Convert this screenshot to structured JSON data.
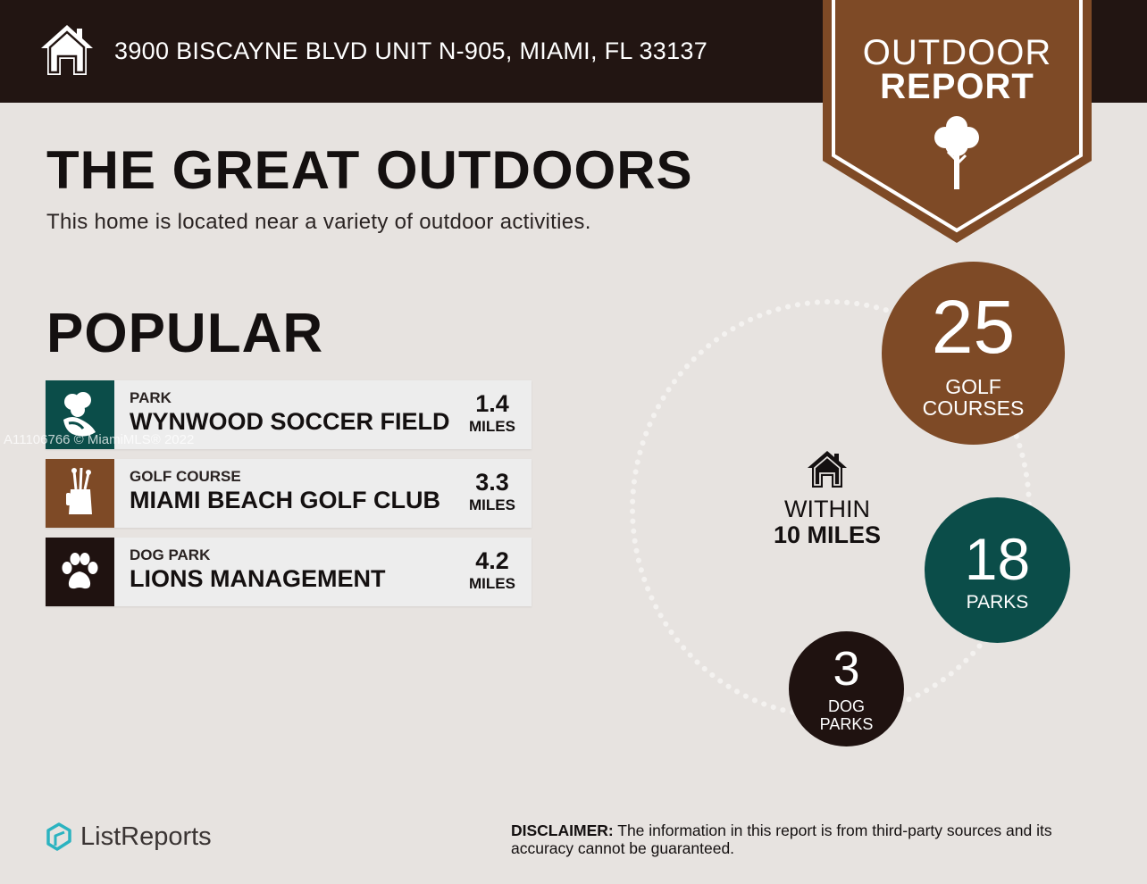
{
  "header": {
    "address": "3900 BISCAYNE BLVD UNIT N-905, MIAMI, FL 33137",
    "icon": "home-icon"
  },
  "badge": {
    "line1": "OUTDOOR",
    "line2": "REPORT",
    "icon": "tree-icon",
    "color": "#7e4a26"
  },
  "main": {
    "headline": "THE GREAT OUTDOORS",
    "subhead": "This home is located near a variety of outdoor activities.",
    "popular_title": "POPULAR"
  },
  "popular": [
    {
      "category": "PARK",
      "name": "WYNWOOD SOCCER FIELD",
      "distance": "1.4",
      "unit": "MILES",
      "icon": "park-icon",
      "color": "#0b4d49"
    },
    {
      "category": "GOLF COURSE",
      "name": "MIAMI BEACH GOLF CLUB",
      "distance": "3.3",
      "unit": "MILES",
      "icon": "golf-bag-icon",
      "color": "#7e4a26"
    },
    {
      "category": "DOG PARK",
      "name": "LIONS MANAGEMENT",
      "distance": "4.2",
      "unit": "MILES",
      "icon": "paw-icon",
      "color": "#1f1210"
    }
  ],
  "watermark": "A11106766 © MiamiMLS® 2022",
  "summary": {
    "within_line1": "WITHIN",
    "within_line2": "10 MILES",
    "golf": {
      "count": "25",
      "label_line1": "GOLF",
      "label_line2": "COURSES",
      "color": "#7e4a26"
    },
    "parks": {
      "count": "18",
      "label": "PARKS",
      "color": "#0b4d49"
    },
    "dog": {
      "count": "3",
      "label_line1": "DOG",
      "label_line2": "PARKS",
      "color": "#1f1210"
    }
  },
  "footer": {
    "logo_text": "ListReports",
    "disclaimer_label": "DISCLAIMER:",
    "disclaimer_text": " The information in this report is from third-party sources and its accuracy cannot be guaranteed."
  }
}
